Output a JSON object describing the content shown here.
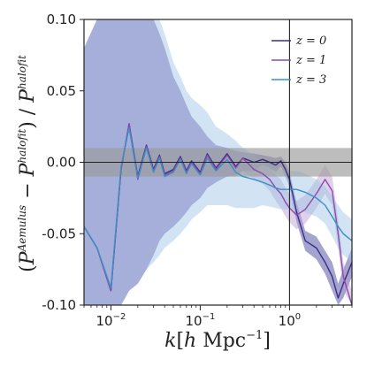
{
  "chart_data": {
    "type": "line",
    "xlabel": "k[h  Mpc⁻¹]",
    "ylabel": "(P^Aemulus − P^halofit) / P^halofit",
    "xscale": "log",
    "xlim": [
      0.005,
      5
    ],
    "ylim": [
      -0.1,
      0.1
    ],
    "x_ticks": [
      {
        "value": 0.01,
        "base": "10",
        "exp": "−2"
      },
      {
        "value": 0.1,
        "base": "10",
        "exp": "−1"
      },
      {
        "value": 1,
        "base": "10",
        "exp": "0"
      }
    ],
    "y_ticks": [
      "0.10",
      "0.05",
      "0.00",
      "-0.05",
      "-0.10"
    ],
    "y_tick_values": [
      0.1,
      0.05,
      0.0,
      -0.05,
      -0.1
    ],
    "reference_band": {
      "y_low": -0.01,
      "y_high": 0.01,
      "color": "#9a9a9a"
    },
    "reference_hline": 0,
    "reference_vline": 1,
    "legend_position": "top-right",
    "series": [
      {
        "name": "z = 0",
        "z": "0",
        "color": "#3b2d86",
        "band_color": "#5a5aa8",
        "x": [
          0.005,
          0.007,
          0.01,
          0.013,
          0.016,
          0.02,
          0.025,
          0.03,
          0.035,
          0.04,
          0.05,
          0.06,
          0.07,
          0.08,
          0.1,
          0.12,
          0.15,
          0.2,
          0.25,
          0.3,
          0.4,
          0.5,
          0.6,
          0.7,
          0.8,
          0.9,
          1.0,
          1.2,
          1.5,
          2.0,
          2.5,
          3.0,
          3.5,
          4.0,
          5.0
        ],
        "y": [
          -0.045,
          -0.06,
          -0.09,
          -0.005,
          0.027,
          -0.01,
          0.012,
          -0.005,
          0.005,
          -0.008,
          -0.005,
          0.004,
          -0.006,
          0.001,
          -0.007,
          0.006,
          -0.004,
          0.006,
          -0.003,
          0.003,
          0.0,
          0.002,
          0.0,
          -0.002,
          0.001,
          -0.005,
          -0.012,
          -0.035,
          -0.055,
          -0.06,
          -0.07,
          -0.08,
          -0.095,
          -0.085,
          -0.07
        ],
        "band_upper": [
          0.08,
          0.1,
          0.1,
          0.1,
          0.1,
          0.1,
          0.1,
          0.1,
          0.09,
          0.08,
          0.06,
          0.05,
          0.04,
          0.032,
          0.025,
          0.018,
          0.012,
          0.01,
          0.008,
          0.007,
          0.006,
          0.005,
          0.004,
          0.003,
          0.004,
          0.0,
          -0.007,
          -0.028,
          -0.048,
          -0.052,
          -0.062,
          -0.07,
          -0.085,
          -0.075,
          -0.06
        ],
        "band_lower": [
          -0.1,
          -0.1,
          -0.1,
          -0.1,
          -0.09,
          -0.085,
          -0.075,
          -0.065,
          -0.055,
          -0.05,
          -0.045,
          -0.04,
          -0.035,
          -0.03,
          -0.025,
          -0.018,
          -0.014,
          -0.01,
          -0.009,
          -0.006,
          -0.006,
          -0.002,
          -0.004,
          -0.007,
          -0.003,
          -0.01,
          -0.017,
          -0.042,
          -0.062,
          -0.068,
          -0.078,
          -0.09,
          -0.1,
          -0.095,
          -0.08
        ]
      },
      {
        "name": "z = 1",
        "z": "1",
        "color": "#8c4ba8",
        "band_color": "#b89ad0",
        "x": [
          0.005,
          0.007,
          0.01,
          0.013,
          0.016,
          0.02,
          0.025,
          0.03,
          0.035,
          0.04,
          0.05,
          0.06,
          0.07,
          0.08,
          0.1,
          0.12,
          0.15,
          0.2,
          0.25,
          0.3,
          0.4,
          0.5,
          0.6,
          0.7,
          0.8,
          0.9,
          1.0,
          1.2,
          1.5,
          2.0,
          2.5,
          3.0,
          3.5,
          4.0,
          5.0
        ],
        "y": [
          -0.045,
          -0.06,
          -0.09,
          -0.005,
          0.027,
          -0.012,
          0.011,
          -0.006,
          0.004,
          -0.009,
          -0.006,
          0.003,
          -0.007,
          0.0,
          -0.008,
          0.005,
          -0.005,
          0.005,
          -0.004,
          0.003,
          -0.005,
          -0.008,
          -0.012,
          -0.018,
          -0.022,
          -0.028,
          -0.032,
          -0.037,
          -0.033,
          -0.022,
          -0.012,
          -0.02,
          -0.05,
          -0.08,
          -0.1
        ],
        "band_upper": [
          0.08,
          0.1,
          0.1,
          0.1,
          0.1,
          0.1,
          0.1,
          0.1,
          0.09,
          0.08,
          0.06,
          0.05,
          0.04,
          0.032,
          0.025,
          0.018,
          0.012,
          0.01,
          0.008,
          0.007,
          0.002,
          -0.001,
          -0.004,
          -0.009,
          -0.012,
          -0.018,
          -0.022,
          -0.027,
          -0.023,
          -0.012,
          -0.002,
          -0.01,
          -0.04,
          -0.07,
          -0.09
        ],
        "band_lower": [
          -0.1,
          -0.1,
          -0.1,
          -0.1,
          -0.09,
          -0.085,
          -0.075,
          -0.065,
          -0.055,
          -0.05,
          -0.045,
          -0.04,
          -0.035,
          -0.03,
          -0.025,
          -0.018,
          -0.014,
          -0.01,
          -0.01,
          -0.006,
          -0.012,
          -0.015,
          -0.02,
          -0.027,
          -0.032,
          -0.038,
          -0.042,
          -0.047,
          -0.043,
          -0.032,
          -0.022,
          -0.03,
          -0.06,
          -0.09,
          -0.1
        ]
      },
      {
        "name": "z = 3",
        "z": "3",
        "color": "#3d8fc4",
        "band_color": "#9cc4e4",
        "x": [
          0.005,
          0.007,
          0.01,
          0.013,
          0.016,
          0.02,
          0.025,
          0.03,
          0.035,
          0.04,
          0.05,
          0.06,
          0.07,
          0.08,
          0.1,
          0.12,
          0.15,
          0.2,
          0.25,
          0.3,
          0.4,
          0.5,
          0.6,
          0.7,
          0.8,
          0.9,
          1.0,
          1.2,
          1.5,
          2.0,
          2.5,
          3.0,
          3.5,
          4.0,
          5.0
        ],
        "y": [
          -0.045,
          -0.06,
          -0.088,
          -0.003,
          0.024,
          -0.011,
          0.01,
          -0.007,
          0.003,
          -0.01,
          -0.007,
          0.002,
          -0.008,
          -0.001,
          -0.009,
          0.003,
          -0.006,
          0.002,
          -0.007,
          -0.01,
          -0.012,
          -0.014,
          -0.016,
          -0.018,
          -0.019,
          -0.019,
          -0.019,
          -0.019,
          -0.021,
          -0.025,
          -0.03,
          -0.038,
          -0.045,
          -0.05,
          -0.055
        ],
        "band_upper": [
          0.08,
          0.1,
          0.1,
          0.1,
          0.1,
          0.1,
          0.1,
          0.1,
          0.1,
          0.09,
          0.07,
          0.06,
          0.05,
          0.045,
          0.04,
          0.035,
          0.025,
          0.02,
          0.015,
          0.01,
          0.005,
          0.0,
          -0.002,
          -0.004,
          -0.005,
          -0.005,
          -0.006,
          -0.006,
          -0.008,
          -0.012,
          -0.017,
          -0.024,
          -0.03,
          -0.035,
          -0.04
        ],
        "band_lower": [
          -0.1,
          -0.1,
          -0.1,
          -0.1,
          -0.09,
          -0.085,
          -0.075,
          -0.07,
          -0.065,
          -0.06,
          -0.055,
          -0.05,
          -0.045,
          -0.04,
          -0.035,
          -0.03,
          -0.03,
          -0.03,
          -0.032,
          -0.032,
          -0.032,
          -0.03,
          -0.031,
          -0.032,
          -0.033,
          -0.033,
          -0.033,
          -0.033,
          -0.035,
          -0.038,
          -0.043,
          -0.052,
          -0.06,
          -0.065,
          -0.07
        ]
      }
    ]
  }
}
